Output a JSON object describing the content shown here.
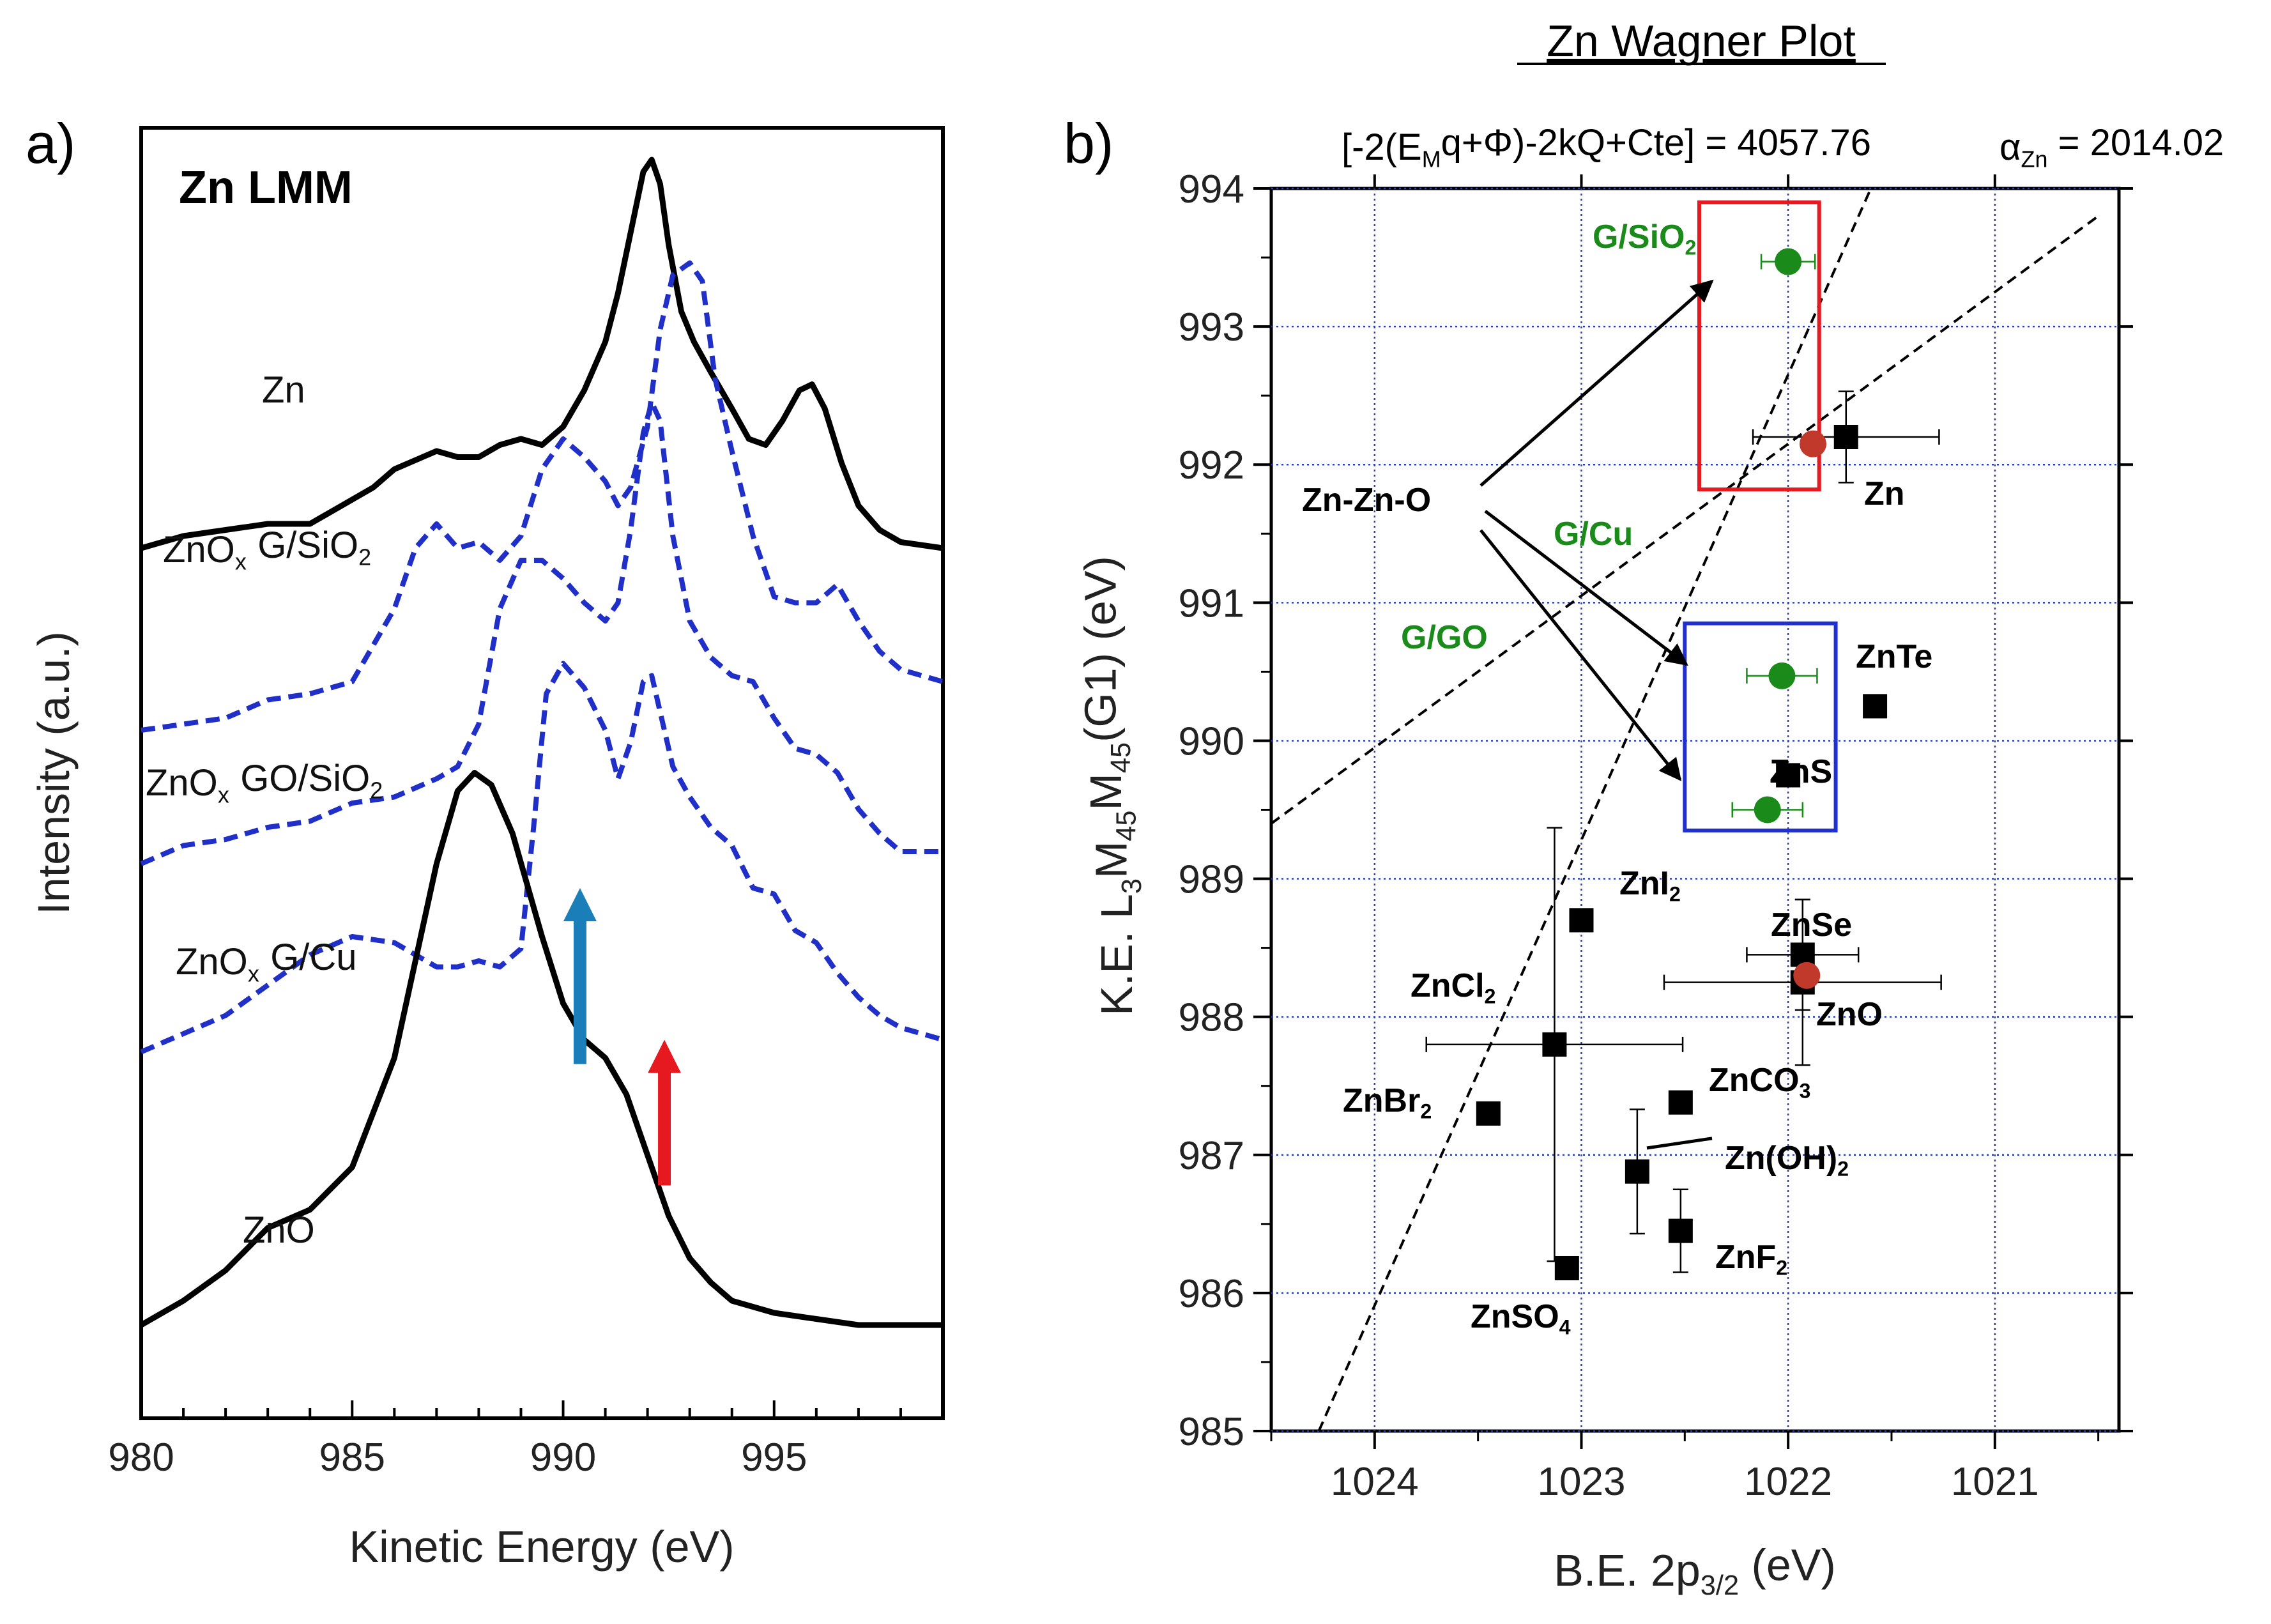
{
  "chart_data": [
    {
      "type": "line",
      "panel_label": "a)",
      "title": "Zn LMM",
      "xlabel": "Kinetic Energy (eV)",
      "ylabel": "Intensity (a.u.)",
      "xlim": [
        980,
        999
      ],
      "xticks": [
        "980",
        "985",
        "990",
        "995"
      ],
      "ylim": [
        0,
        10
      ],
      "yticks_shown": false,
      "grid": false,
      "series": [
        {
          "name": "Zn",
          "style": "solid-black",
          "label_parts": [
            "Zn"
          ],
          "x": [
            980,
            981,
            982,
            983,
            984,
            985,
            985.5,
            986,
            987,
            987.5,
            988,
            988.5,
            989,
            989.5,
            990,
            990.5,
            991,
            991.3,
            991.6,
            991.9,
            992.1,
            992.3,
            992.5,
            992.8,
            993.1,
            993.5,
            994,
            994.4,
            994.8,
            995.2,
            995.6,
            995.9,
            996.2,
            996.6,
            997,
            997.5,
            998,
            999
          ],
          "y": [
            6.8,
            6.9,
            6.95,
            7.0,
            7.0,
            7.2,
            7.3,
            7.45,
            7.6,
            7.55,
            7.55,
            7.65,
            7.7,
            7.65,
            7.8,
            8.1,
            8.5,
            8.9,
            9.4,
            9.9,
            10.0,
            9.8,
            9.3,
            8.75,
            8.5,
            8.25,
            7.95,
            7.7,
            7.65,
            7.85,
            8.1,
            8.15,
            7.95,
            7.5,
            7.15,
            6.95,
            6.85,
            6.8
          ]
        },
        {
          "name": "ZnOx G/SiO2",
          "style": "dashed-blue",
          "label_parts": [
            "ZnO",
            "x",
            "G/SiO",
            "2"
          ],
          "x": [
            980,
            981,
            982,
            983,
            984,
            985,
            986,
            986.5,
            987,
            987.5,
            988,
            988.5,
            989,
            989.5,
            990,
            990.5,
            991,
            991.3,
            991.6,
            992,
            992.3,
            992.6,
            993,
            993.3,
            993.6,
            994,
            994.5,
            995,
            995.5,
            996,
            996.5,
            997,
            997.5,
            998,
            999
          ],
          "y": [
            5.3,
            5.35,
            5.4,
            5.55,
            5.6,
            5.7,
            6.3,
            6.8,
            7.0,
            6.8,
            6.85,
            6.7,
            6.9,
            7.45,
            7.7,
            7.55,
            7.35,
            7.15,
            7.3,
            7.8,
            8.6,
            9.05,
            9.15,
            9.0,
            8.2,
            7.6,
            6.9,
            6.4,
            6.35,
            6.35,
            6.5,
            6.2,
            5.95,
            5.8,
            5.7
          ]
        },
        {
          "name": "ZnOx GO/SiO2",
          "style": "dashed-blue",
          "label_parts": [
            "ZnO",
            "x",
            "GO/SiO",
            "2"
          ],
          "x": [
            980,
            981,
            982,
            983,
            984,
            985,
            986,
            987,
            987.5,
            988,
            988.5,
            989,
            989.5,
            990,
            990.5,
            991,
            991.3,
            991.6,
            991.9,
            992.1,
            992.3,
            992.6,
            993,
            993.5,
            994,
            994.5,
            995,
            995.5,
            996,
            996.5,
            997,
            997.5,
            998,
            999
          ],
          "y": [
            4.2,
            4.35,
            4.4,
            4.5,
            4.55,
            4.7,
            4.75,
            4.9,
            5.0,
            5.35,
            6.3,
            6.7,
            6.7,
            6.55,
            6.35,
            6.2,
            6.35,
            6.95,
            7.75,
            8.0,
            7.85,
            6.9,
            6.2,
            5.9,
            5.75,
            5.7,
            5.4,
            5.15,
            5.1,
            4.95,
            4.65,
            4.45,
            4.3,
            4.3
          ]
        },
        {
          "name": "ZnOx G/Cu",
          "style": "dashed-blue",
          "label_parts": [
            "ZnO",
            "x",
            "G/Cu"
          ],
          "x": [
            980,
            981,
            982,
            983,
            984,
            985,
            986,
            987,
            987.5,
            988,
            988.5,
            989,
            989.3,
            989.6,
            990,
            990.5,
            991,
            991.3,
            991.6,
            991.9,
            992.1,
            992.3,
            992.6,
            993,
            993.5,
            994,
            994.5,
            995,
            995.5,
            996,
            996.5,
            997,
            997.5,
            998,
            999
          ],
          "y": [
            2.65,
            2.8,
            2.95,
            3.2,
            3.45,
            3.6,
            3.55,
            3.35,
            3.35,
            3.4,
            3.35,
            3.5,
            4.5,
            5.6,
            5.85,
            5.65,
            5.3,
            4.9,
            5.2,
            5.7,
            5.75,
            5.45,
            5.0,
            4.75,
            4.5,
            4.35,
            4.0,
            3.95,
            3.65,
            3.55,
            3.3,
            3.1,
            2.95,
            2.85,
            2.75
          ]
        },
        {
          "name": "ZnO",
          "style": "solid-black",
          "label_parts": [
            "ZnO"
          ],
          "x": [
            980,
            981,
            982,
            983,
            984,
            985,
            986,
            986.5,
            987,
            987.5,
            987.9,
            988.3,
            988.8,
            989.5,
            990,
            990.5,
            991,
            991.5,
            992,
            992.5,
            993,
            993.5,
            994,
            995,
            996,
            997,
            998,
            999
          ],
          "y": [
            0.4,
            0.6,
            0.85,
            1.2,
            1.35,
            1.7,
            2.6,
            3.4,
            4.2,
            4.8,
            4.95,
            4.85,
            4.45,
            3.6,
            3.05,
            2.75,
            2.6,
            2.3,
            1.8,
            1.3,
            0.95,
            0.75,
            0.6,
            0.5,
            0.45,
            0.4,
            0.4,
            0.4
          ]
        }
      ],
      "arrows": [
        {
          "name": "blue-arrow",
          "color": "#1A7FB8",
          "x": 990.4,
          "y_from": 2.55,
          "y_to": 4.0
        },
        {
          "name": "red-arrow",
          "color": "#E5191F",
          "x": 992.4,
          "y_from": 1.55,
          "y_to": 2.75
        }
      ]
    },
    {
      "type": "scatter",
      "panel_label": "b)",
      "title": "Zn Wagner Plot",
      "equation_parts": [
        "[-2(E",
        "M",
        "q+Φ)-2kQ+Cte] = 4057.76"
      ],
      "alpha_parts": [
        "α",
        "Zn",
        " = 2014.02"
      ],
      "xlabel_parts": [
        "B.E. 2p",
        "3/2",
        " (eV)"
      ],
      "ylabel_parts": [
        "K.E.  L",
        "3",
        "M",
        "45",
        "M",
        "45",
        "(G1) (eV)"
      ],
      "xlim": [
        1024.5,
        1020.4
      ],
      "x_reversed": true,
      "ylim": [
        985,
        994
      ],
      "xticks": [
        1024,
        1023,
        1022,
        1021
      ],
      "yticks": [
        985,
        986,
        987,
        988,
        989,
        990,
        991,
        992,
        993,
        994
      ],
      "grid": true,
      "points": [
        {
          "name": "Zn",
          "x": 1021.72,
          "y": 992.2,
          "marker": "square",
          "color": "#000000",
          "xerr": 0.45,
          "yerr": 0.33
        },
        {
          "name": "ZnTe",
          "x": 1021.58,
          "y": 990.25,
          "marker": "square",
          "color": "#000000"
        },
        {
          "name": "ZnS",
          "x": 1022.0,
          "y": 989.75,
          "marker": "square",
          "color": "#000000"
        },
        {
          "name": "ZnI2",
          "x": 1023.0,
          "y": 988.7,
          "marker": "square",
          "color": "#000000"
        },
        {
          "name": "ZnSe",
          "x": 1021.93,
          "y": 988.45,
          "marker": "square",
          "color": "#000000",
          "xerr": 0.27,
          "yerr": 0.4
        },
        {
          "name": "ZnO",
          "x": 1021.93,
          "y": 988.25,
          "marker": "square",
          "color": "#000000",
          "xerr": 0.67,
          "yerr": 0.6
        },
        {
          "name": "ZnCl2",
          "x": 1023.13,
          "y": 987.8,
          "marker": "square",
          "color": "#000000",
          "xerr": 0.62,
          "yerr": 1.57
        },
        {
          "name": "ZnCO3",
          "x": 1022.52,
          "y": 987.38,
          "marker": "square",
          "color": "#000000"
        },
        {
          "name": "ZnBr2",
          "x": 1023.45,
          "y": 987.3,
          "marker": "square",
          "color": "#000000"
        },
        {
          "name": "Zn(OH)2",
          "x": 1022.73,
          "y": 986.88,
          "marker": "square",
          "color": "#000000",
          "yerr": 0.45
        },
        {
          "name": "ZnF2",
          "x": 1022.52,
          "y": 986.45,
          "marker": "square",
          "color": "#000000",
          "yerr": 0.3
        },
        {
          "name": "ZnSO4",
          "x": 1023.07,
          "y": 986.18,
          "marker": "square",
          "color": "#000000"
        },
        {
          "name": "G/SiO2",
          "x": 1022.0,
          "y": 993.47,
          "marker": "circle",
          "color": "#1A8A1A",
          "xerr": 0.13
        },
        {
          "name": "G/GO",
          "x": 1022.03,
          "y": 990.47,
          "marker": "circle",
          "color": "#1A8A1A",
          "xerr": 0.17
        },
        {
          "name": "G/Cu",
          "x": 1022.1,
          "y": 989.5,
          "marker": "circle",
          "color": "#1A8A1A",
          "xerr": 0.17
        },
        {
          "name": "Zn-red",
          "x": 1021.88,
          "y": 992.15,
          "marker": "circle",
          "color": "#C0392B"
        },
        {
          "name": "ZnO-red",
          "x": 1021.91,
          "y": 988.3,
          "marker": "circle",
          "color": "#C0392B"
        }
      ],
      "point_labels": [
        {
          "for": "Zn",
          "parts": [
            "Zn"
          ],
          "color": "#000000"
        },
        {
          "for": "ZnTe",
          "parts": [
            "ZnTe"
          ],
          "color": "#000000"
        },
        {
          "for": "ZnS",
          "parts": [
            "ZnS"
          ],
          "color": "#000000"
        },
        {
          "for": "ZnI2",
          "parts": [
            "ZnI",
            "2"
          ],
          "color": "#000000"
        },
        {
          "for": "ZnSe",
          "parts": [
            "ZnSe"
          ],
          "color": "#000000"
        },
        {
          "for": "ZnO",
          "parts": [
            "ZnO"
          ],
          "color": "#000000"
        },
        {
          "for": "ZnCl2",
          "parts": [
            "ZnCl",
            "2"
          ],
          "color": "#000000"
        },
        {
          "for": "ZnCO3",
          "parts": [
            "ZnCO",
            "3"
          ],
          "color": "#000000"
        },
        {
          "for": "ZnBr2",
          "parts": [
            "ZnBr",
            "2"
          ],
          "color": "#000000"
        },
        {
          "for": "Zn(OH)2",
          "parts": [
            "Zn(OH)",
            "2"
          ],
          "color": "#000000"
        },
        {
          "for": "ZnF2",
          "parts": [
            "ZnF",
            "2"
          ],
          "color": "#000000"
        },
        {
          "for": "ZnSO4",
          "parts": [
            "ZnSO",
            "4"
          ],
          "color": "#000000"
        },
        {
          "for": "G/SiO2",
          "parts": [
            "G/SiO",
            "2"
          ],
          "color": "#1A8A1A"
        },
        {
          "for": "G/Cu",
          "parts": [
            "G/Cu"
          ],
          "color": "#1A8A1A"
        },
        {
          "for": "G/GO",
          "parts": [
            "G/GO"
          ],
          "color": "#1A8A1A"
        },
        {
          "for": "Zn-Zn-O",
          "parts": [
            "Zn-Zn-O"
          ],
          "color": "#000000"
        }
      ],
      "reference_lines": [
        {
          "name": "dashed-line-steep",
          "x1": 1024.27,
          "y1": 985.0,
          "x2": 1021.6,
          "y2": 994.0
        },
        {
          "name": "dashed-line-shallow",
          "x1": 1024.5,
          "y1": 989.4,
          "x2": 1020.5,
          "y2": 993.8
        }
      ],
      "boxes": [
        {
          "name": "red-box",
          "color": "#E5191F",
          "x_left": 1022.43,
          "x_right": 1021.85,
          "y_bottom": 991.82,
          "y_top": 993.9
        },
        {
          "name": "blue-box",
          "color": "#1F2FD0",
          "x_left": 1022.5,
          "x_right": 1021.77,
          "y_bottom": 989.35,
          "y_top": 990.85
        }
      ]
    }
  ]
}
